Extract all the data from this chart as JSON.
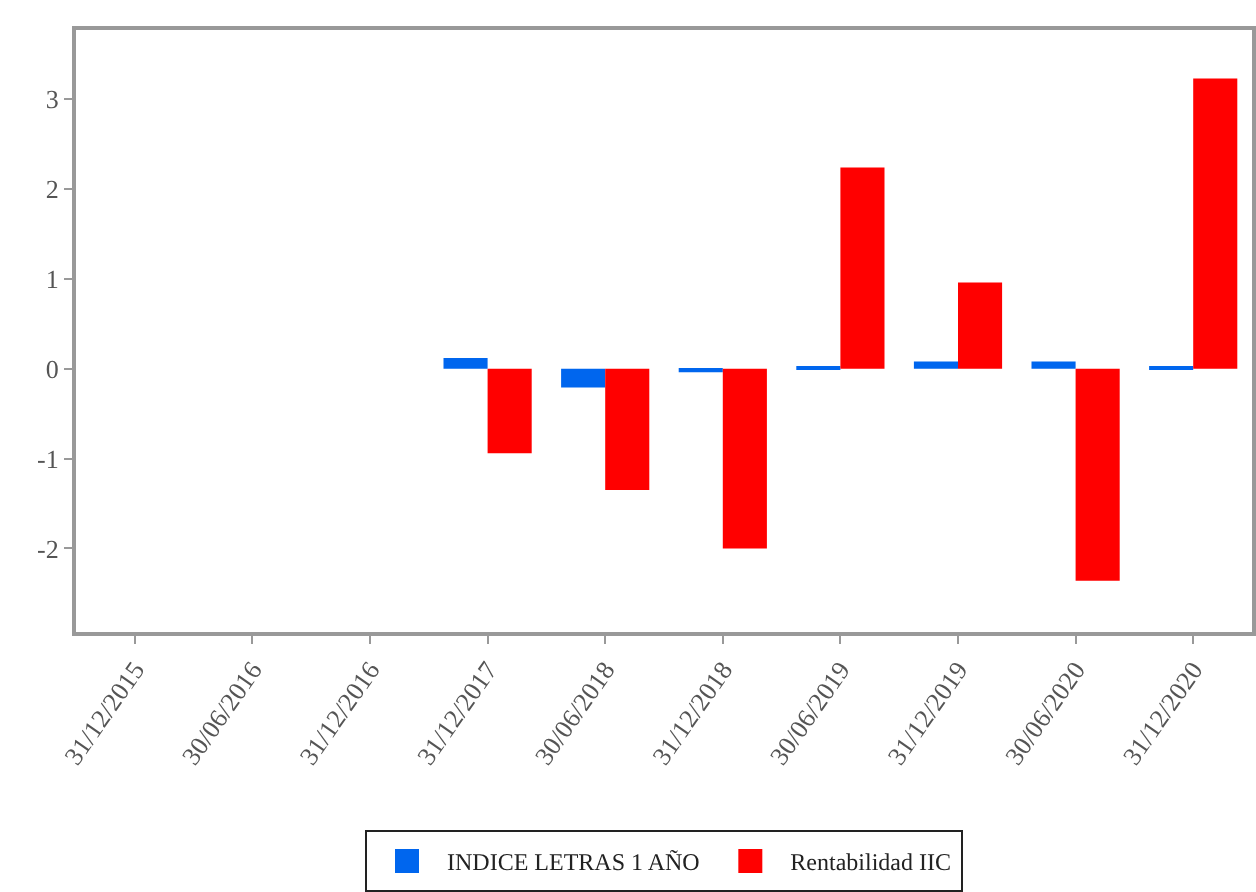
{
  "chart_data": {
    "type": "bar",
    "categories": [
      "31/12/2015",
      "30/06/2016",
      "31/12/2016",
      "31/12/2017",
      "30/06/2018",
      "31/12/2018",
      "30/06/2019",
      "31/12/2019",
      "30/06/2020",
      "31/12/2020"
    ],
    "series": [
      {
        "name": "INDICE LETRAS 1 AÑO",
        "color": "#0066ee",
        "values": [
          null,
          null,
          null,
          0.12,
          -0.21,
          -0.04,
          0.02,
          0.08,
          0.08,
          0.03
        ]
      },
      {
        "name": "Rentabilidad IIC",
        "color": "#ff0000",
        "values": [
          null,
          null,
          null,
          -0.94,
          -1.35,
          -2.0,
          2.24,
          0.96,
          -2.36,
          3.23
        ]
      }
    ],
    "ylim": [
      -2.93,
      3.77
    ],
    "yticks": [
      -2,
      -1,
      0,
      1,
      2,
      3
    ],
    "legend": "bottom"
  }
}
